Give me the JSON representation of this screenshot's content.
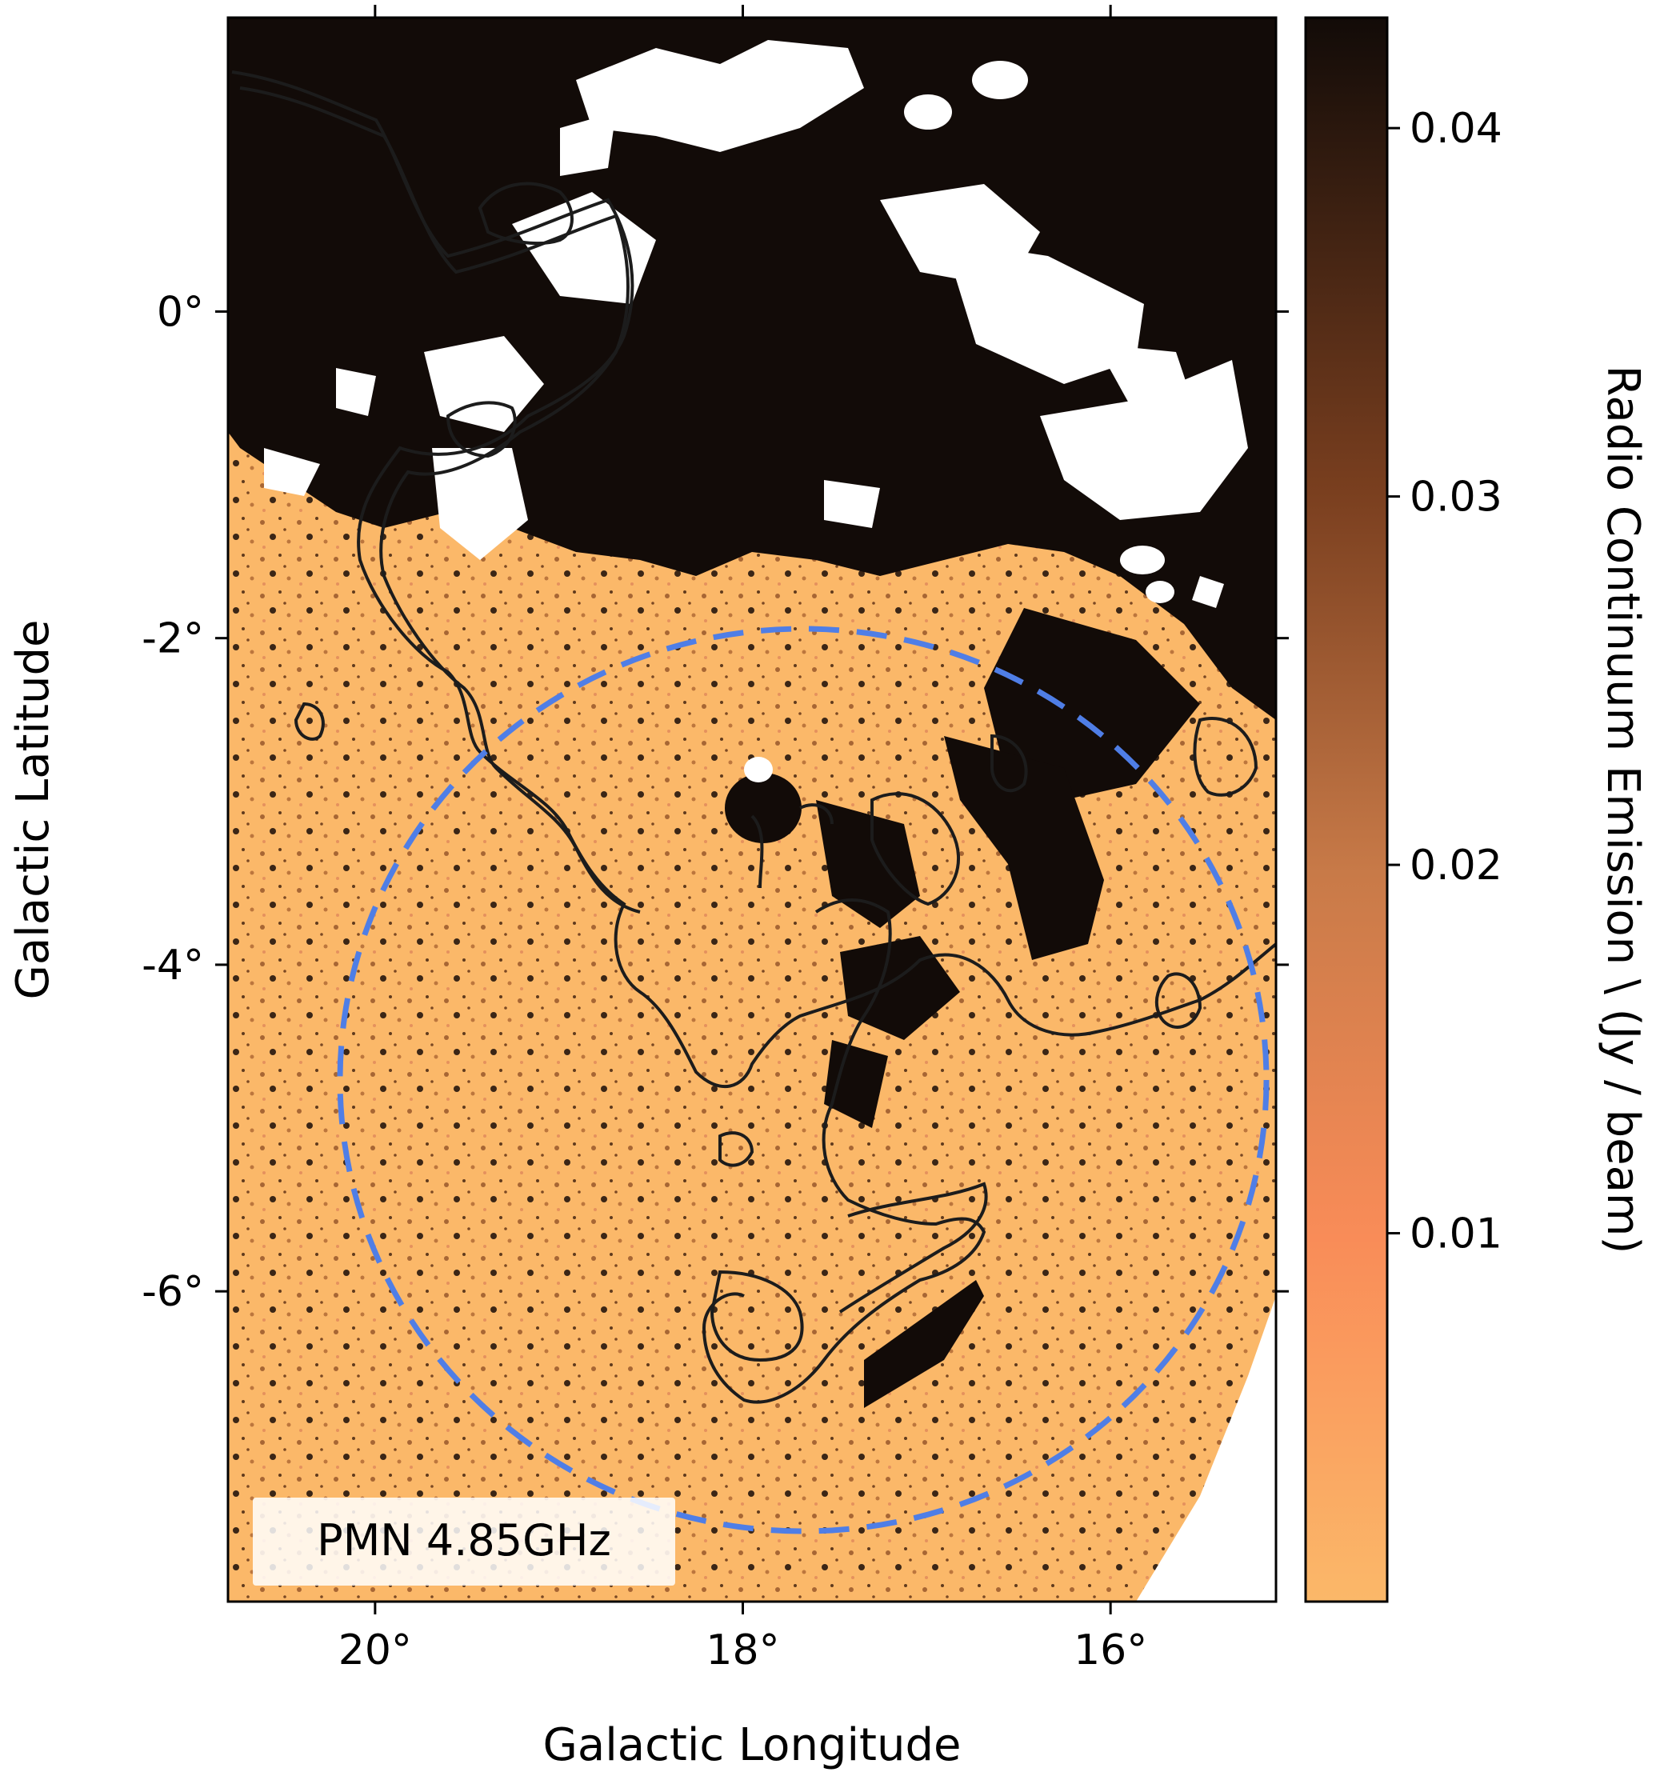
{
  "chart_data": {
    "type": "heatmap",
    "xlabel": "Galactic Longitude",
    "ylabel": "Galactic Latitude",
    "xlim": [
      20.8,
      15.1
    ],
    "ylim": [
      -7.9,
      1.8
    ],
    "x_ticks": [
      20,
      18,
      16
    ],
    "x_tick_labels": [
      "20°",
      "18°",
      "16°"
    ],
    "y_ticks": [
      0,
      -2,
      -4,
      -6
    ],
    "y_tick_labels": [
      "0°",
      "-2°",
      "-4°",
      "-6°"
    ],
    "colorbar": {
      "label": "Radio Continuum Emission \\ (Jy / beam)",
      "range": [
        0.0,
        0.043
      ],
      "ticks": [
        0.01,
        0.02,
        0.03,
        0.04
      ],
      "tick_labels": [
        "0.01",
        "0.02",
        "0.03",
        "0.04"
      ],
      "colors": [
        "#fbb869",
        "#f98c58",
        "#c87a48",
        "#7a3f1f",
        "#120b08"
      ]
    },
    "annotation": "PMN 4.85GHz",
    "circle": {
      "center_l": 17.55,
      "center_b": -4.0,
      "radius_deg": 2.55,
      "style": "dashed",
      "color": "#4f7ee6"
    },
    "contour_color": "#1c1c1c",
    "grid": false
  }
}
